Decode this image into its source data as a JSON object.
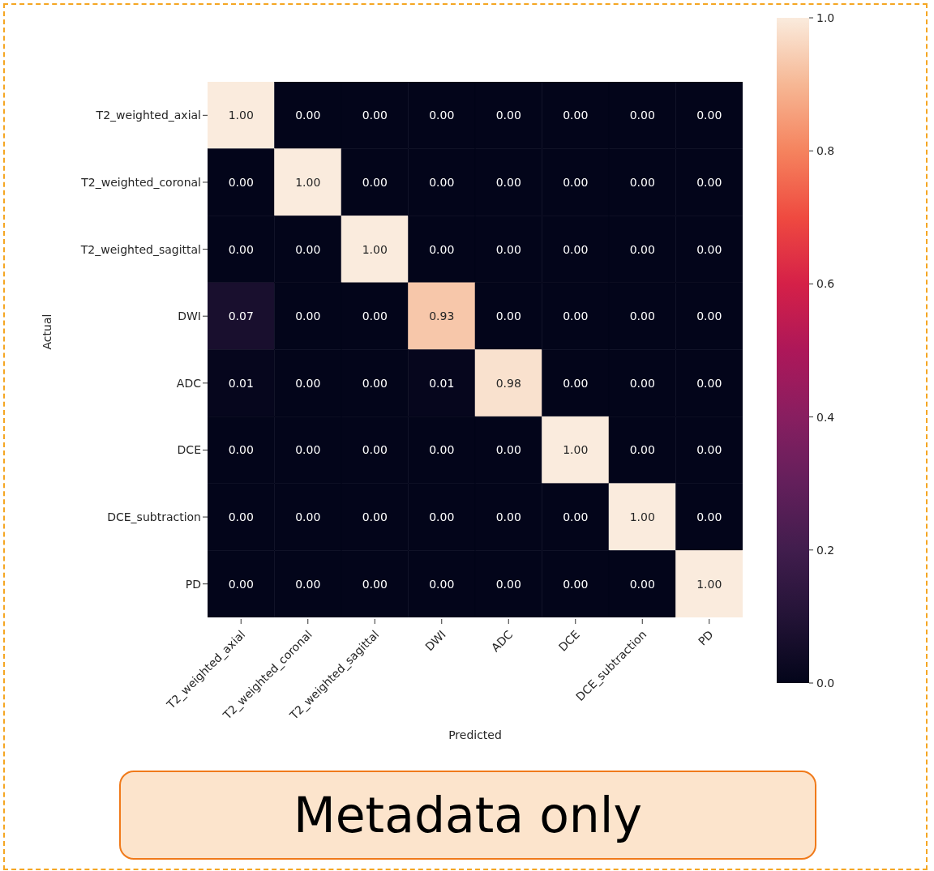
{
  "chart_data": {
    "type": "heatmap",
    "xlabel": "Predicted",
    "ylabel": "Actual",
    "categories": [
      "T2_weighted_axial",
      "T2_weighted_coronal",
      "T2_weighted_sagittal",
      "DWI",
      "ADC",
      "DCE",
      "DCE_subtraction",
      "PD"
    ],
    "y_categories": [
      "T2_weighted_axial",
      "T2_weighted_coronal",
      "T2_weighted_sagittal",
      "DWI",
      "ADC",
      "DCE",
      "DCE_subtraction",
      "PD"
    ],
    "cells": [
      [
        1,
        0,
        0,
        0,
        0,
        0,
        0,
        0
      ],
      [
        0,
        1,
        0,
        0,
        0,
        0,
        0,
        0
      ],
      [
        0,
        0,
        1,
        0,
        0,
        0,
        0,
        0
      ],
      [
        0.07,
        0,
        0,
        0.93,
        0,
        0,
        0,
        0
      ],
      [
        0.01,
        0,
        0,
        0.01,
        0.98,
        0,
        0,
        0
      ],
      [
        0,
        0,
        0,
        0,
        0,
        1,
        0,
        0
      ],
      [
        0,
        0,
        0,
        0,
        0,
        0,
        1,
        0
      ],
      [
        0,
        0,
        0,
        0,
        0,
        0,
        0,
        1
      ]
    ],
    "cell_labels": [
      [
        "1.00",
        "0.00",
        "0.00",
        "0.00",
        "0.00",
        "0.00",
        "0.00",
        "0.00"
      ],
      [
        "0.00",
        "1.00",
        "0.00",
        "0.00",
        "0.00",
        "0.00",
        "0.00",
        "0.00"
      ],
      [
        "0.00",
        "0.00",
        "1.00",
        "0.00",
        "0.00",
        "0.00",
        "0.00",
        "0.00"
      ],
      [
        "0.07",
        "0.00",
        "0.00",
        "0.93",
        "0.00",
        "0.00",
        "0.00",
        "0.00"
      ],
      [
        "0.01",
        "0.00",
        "0.00",
        "0.01",
        "0.98",
        "0.00",
        "0.00",
        "0.00"
      ],
      [
        "0.00",
        "0.00",
        "0.00",
        "0.00",
        "0.00",
        "1.00",
        "0.00",
        "0.00"
      ],
      [
        "0.00",
        "0.00",
        "0.00",
        "0.00",
        "0.00",
        "0.00",
        "1.00",
        "0.00"
      ],
      [
        "0.00",
        "0.00",
        "0.00",
        "0.00",
        "0.00",
        "0.00",
        "0.00",
        "1.00"
      ]
    ],
    "clim": [
      0,
      1
    ],
    "cticks": [
      {
        "value": 0,
        "label": "0.0"
      },
      {
        "value": 0.2,
        "label": "0.2"
      },
      {
        "value": 0.4,
        "label": "0.4"
      },
      {
        "value": 0.6,
        "label": "0.6"
      },
      {
        "value": 0.8,
        "label": "0.8"
      },
      {
        "value": 1,
        "label": "1.0"
      }
    ],
    "annotations": [
      "Metadata only"
    ]
  }
}
